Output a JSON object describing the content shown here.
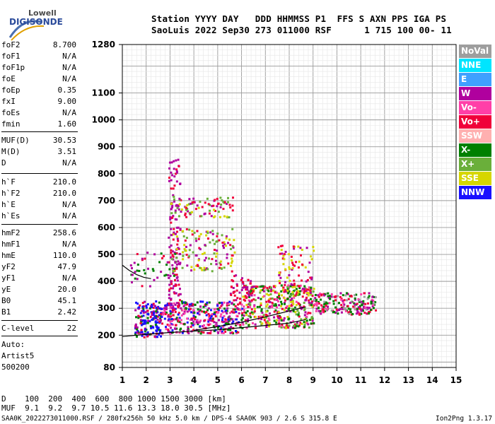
{
  "logo": {
    "brand": "Lowell",
    "product": "DIGISONDE"
  },
  "header": {
    "line1": "Station YYYY DAY   DDD HHMMSS P1  FFS S AXN PPS IGA PS",
    "line2": "SaoLuis 2022 Sep30 273 011000 RSF      1 715 100 00- 11"
  },
  "params": [
    {
      "name": "foF2",
      "value": "8.700"
    },
    {
      "name": "foF1",
      "value": "N/A"
    },
    {
      "name": "foF1p",
      "value": "N/A"
    },
    {
      "name": "foE",
      "value": "N/A"
    },
    {
      "name": "foEp",
      "value": "0.35"
    },
    {
      "name": "fxI",
      "value": "9.00"
    },
    {
      "name": "foEs",
      "value": "N/A"
    },
    {
      "name": "fmin",
      "value": "1.60"
    },
    {
      "name": "MUF(D)",
      "value": "30.53"
    },
    {
      "name": "M(D)",
      "value": "3.51"
    },
    {
      "name": "D",
      "value": "N/A"
    },
    {
      "name": "h`F",
      "value": "210.0"
    },
    {
      "name": "h`F2",
      "value": "210.0"
    },
    {
      "name": "h`E",
      "value": "N/A"
    },
    {
      "name": "h`Es",
      "value": "N/A"
    },
    {
      "name": "hmF2",
      "value": "258.6"
    },
    {
      "name": "hmF1",
      "value": "N/A"
    },
    {
      "name": "hmE",
      "value": "110.0"
    },
    {
      "name": "yF2",
      "value": "47.9"
    },
    {
      "name": "yF1",
      "value": "N/A"
    },
    {
      "name": "yE",
      "value": "20.0"
    },
    {
      "name": "B0",
      "value": "45.1"
    },
    {
      "name": "B1",
      "value": "2.42"
    },
    {
      "name": "C-level",
      "value": "22"
    }
  ],
  "auto": {
    "line1": "Auto:",
    "line2": "Artist5",
    "line3": "500200"
  },
  "legend": [
    {
      "label": "NoVal",
      "color": "#9e9e9e"
    },
    {
      "label": "NNE",
      "color": "#00e5ff"
    },
    {
      "label": "E",
      "color": "#3fa0ff"
    },
    {
      "label": "W",
      "color": "#b0009e"
    },
    {
      "label": "Vo-",
      "color": "#ff3fa8"
    },
    {
      "label": "Vo+",
      "color": "#f0003a"
    },
    {
      "label": "SSW",
      "color": "#ffb0b0"
    },
    {
      "label": "X-",
      "color": "#008000"
    },
    {
      "label": "X+",
      "color": "#6aaf3a"
    },
    {
      "label": "SSE",
      "color": "#d6d600"
    },
    {
      "label": "NNW",
      "color": "#1a10ff"
    }
  ],
  "footer": {
    "d_row": "D    100  200  400  600  800 1000 1500 3000 [km]",
    "muf_row": "MUF  9.1  9.2  9.7 10.5 11.6 13.3 18.0 30.5 [MHz]",
    "file_info": "SAA0K_2022273011000.RSF / 280fx256h 50 kHz 5.0 km / DPS-4 SAA0K 903 / 2.6 S 315.8 E",
    "version": "Ion2Png 1.3.17"
  },
  "chart_data": {
    "type": "scatter",
    "xlim": [
      1,
      15
    ],
    "ylim": [
      80,
      1280
    ],
    "x_ticks": [
      "1",
      "2",
      "3",
      "4",
      "5",
      "6",
      "7",
      "8",
      "9",
      "10",
      "11",
      "12",
      "13",
      "14",
      "15"
    ],
    "y_ticks": [
      "80",
      "200",
      "300",
      "400",
      "500",
      "600",
      "700",
      "800",
      "900",
      "1000",
      "1100",
      "1280"
    ],
    "grid": true,
    "trace_hF2": {
      "x": [
        1.0,
        2.0,
        3.0,
        4.0,
        5.0,
        6.0,
        7.0,
        8.0,
        8.7
      ],
      "y": [
        195,
        203,
        210,
        215,
        220,
        228,
        236,
        245,
        258
      ]
    },
    "trace_hF2_upper": {
      "x": [
        4.0,
        5.0,
        6.0,
        7.0,
        8.0,
        8.7
      ],
      "y": [
        218,
        232,
        248,
        268,
        290,
        305
      ]
    },
    "trace_ex_lowfreq": {
      "x": [
        1.0,
        1.3,
        1.6,
        1.9,
        2.2
      ],
      "y": [
        460,
        440,
        425,
        415,
        410
      ]
    },
    "clusters": [
      {
        "x": [
          1.5,
          2.6
        ],
        "y": [
          195,
          330
        ],
        "colors": [
          "#1a10ff",
          "#b0009e",
          "#1a10ff",
          "#f0003a",
          "#008000"
        ],
        "n": 180
      },
      {
        "x": [
          2.6,
          6.0
        ],
        "y": [
          210,
          330
        ],
        "colors": [
          "#b0009e",
          "#1a10ff",
          "#f0003a",
          "#008000",
          "#ff3fa8"
        ],
        "n": 380
      },
      {
        "x": [
          6.0,
          9.0
        ],
        "y": [
          230,
          390
        ],
        "colors": [
          "#f0003a",
          "#ff3fa8",
          "#b0009e",
          "#008000",
          "#6aaf3a",
          "#d6d600"
        ],
        "n": 420
      },
      {
        "x": [
          9.0,
          11.6
        ],
        "y": [
          280,
          360
        ],
        "colors": [
          "#b0009e",
          "#f0003a",
          "#ff3fa8",
          "#9e9e9e",
          "#008000"
        ],
        "n": 220
      },
      {
        "x": [
          2.9,
          3.4
        ],
        "y": [
          300,
          860
        ],
        "colors": [
          "#b0009e",
          "#f0003a",
          "#b0009e"
        ],
        "n": 120
      },
      {
        "x": [
          3.0,
          5.6
        ],
        "y": [
          640,
          720
        ],
        "colors": [
          "#6aaf3a",
          "#d6d600",
          "#b0009e",
          "#f0003a"
        ],
        "n": 90
      },
      {
        "x": [
          3.0,
          5.7
        ],
        "y": [
          440,
          600
        ],
        "colors": [
          "#b0009e",
          "#6aaf3a",
          "#d6d600",
          "#f0003a"
        ],
        "n": 140
      },
      {
        "x": [
          7.5,
          9.0
        ],
        "y": [
          350,
          540
        ],
        "colors": [
          "#b0009e",
          "#f0003a",
          "#d6d600"
        ],
        "n": 80
      },
      {
        "x": [
          5.5,
          6.5
        ],
        "y": [
          330,
          430
        ],
        "colors": [
          "#b0009e",
          "#f0003a"
        ],
        "n": 50
      },
      {
        "x": [
          1.3,
          3.2
        ],
        "y": [
          380,
          520
        ],
        "colors": [
          "#b0009e",
          "#f0003a",
          "#008000"
        ],
        "n": 45
      }
    ]
  }
}
